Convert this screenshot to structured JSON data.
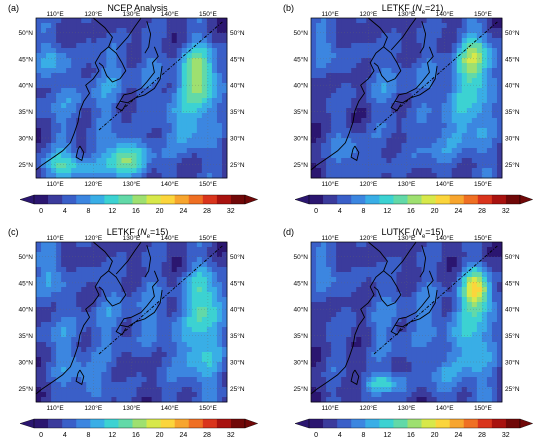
{
  "figure": {
    "lat_labels": [
      "50°N",
      "45°N",
      "40°N",
      "35°N",
      "30°N",
      "25°N"
    ],
    "lon_labels": [
      "110°E",
      "120°E",
      "130°E",
      "140°E",
      "150°E"
    ],
    "colorbar": {
      "ticks": [
        "0",
        "4",
        "8",
        "12",
        "16",
        "20",
        "24",
        "28",
        "32"
      ],
      "colors": [
        "#2b1670",
        "#3b3b9c",
        "#3a5fc8",
        "#3c86e0",
        "#39aee6",
        "#3cd2d2",
        "#62d9a8",
        "#9ee070",
        "#d7e84a",
        "#fbd53c",
        "#f7a52e",
        "#ef6f23",
        "#d9341c",
        "#a8120f",
        "#700808"
      ]
    },
    "panels": [
      {
        "letter": "(a)",
        "title": "NCEP Analysis"
      },
      {
        "letter": "(b)",
        "title_prefix": "LETKF (",
        "title_var": "N",
        "title_sub": "e",
        "title_suffix": "=21)"
      },
      {
        "letter": "(c)",
        "title_prefix": "LETKF (",
        "title_var": "N",
        "title_sub": "e",
        "title_suffix": "=15)"
      },
      {
        "letter": "(d)",
        "title_prefix": "LUTKF (",
        "title_var": "N",
        "title_sub": "e",
        "title_suffix": "=15)"
      }
    ]
  }
}
